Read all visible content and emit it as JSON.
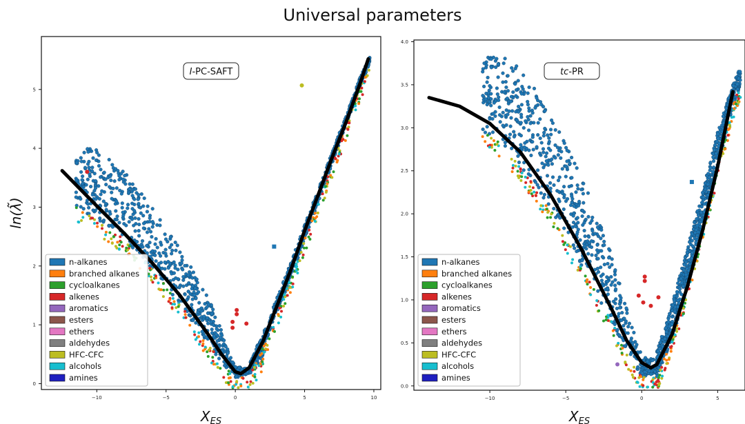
{
  "figure": {
    "title": "Universal parameters"
  },
  "colors": {
    "n-alkanes": "#1f77b4",
    "branched alkanes": "#ff7f0e",
    "cycloalkanes": "#2ca02c",
    "alkenes": "#d62728",
    "aromatics": "#9467bd",
    "esters": "#8c564b",
    "ethers": "#e377c2",
    "aldehydes": "#7f7f7f",
    "HFC-CFC": "#bcbd22",
    "alcohols": "#17becf",
    "amines": "#1f1fbf",
    "fit_curve": "#000000"
  },
  "chart_data": [
    {
      "type": "scatter",
      "annotation_prefix": "I",
      "annotation_suffix": "-PC-SAFT",
      "xlabel": "X_ES",
      "ylabel": "ln(λ̃)",
      "xlim": [
        -14,
        10.5
      ],
      "ylim": [
        -0.1,
        5.9
      ],
      "xticks": [
        -10,
        -5,
        0,
        5,
        10
      ],
      "yticks": [
        0,
        1,
        2,
        3,
        4,
        5
      ],
      "legend": [
        "n-alkanes",
        "branched alkanes",
        "cycloalkanes",
        "alkenes",
        "aromatics",
        "esters",
        "ethers",
        "aldehydes",
        "HFC-CFC",
        "alcohols",
        "amines"
      ],
      "legend_position": "lower-left",
      "fit_curve": {
        "x": [
          -12.5,
          -10,
          -8,
          -6,
          -4,
          -2,
          -1,
          0,
          0.4,
          1,
          2,
          3,
          4,
          5,
          6,
          7,
          8,
          9,
          9.6
        ],
        "y": [
          3.62,
          3.02,
          2.55,
          2.05,
          1.5,
          0.85,
          0.5,
          0.2,
          0.17,
          0.27,
          0.72,
          1.32,
          1.93,
          2.6,
          3.22,
          3.85,
          4.45,
          5.1,
          5.52
        ]
      },
      "series": [
        {
          "name": "n-alkanes",
          "band_upper": {
            "x": [
              -11.5,
              -10,
              -8,
              -6,
              -4,
              -2,
              -1,
              0,
              1,
              2
            ],
            "y": [
              4.02,
              3.98,
              3.6,
              3.0,
              2.3,
              1.5,
              0.9,
              0.3,
              0.25,
              0.6
            ]
          },
          "band_lower": {
            "x": [
              -11.5,
              -10,
              -8,
              -6,
              -4,
              -2,
              -1,
              0,
              1,
              2
            ],
            "y": [
              3.0,
              2.8,
              2.45,
              1.95,
              1.35,
              0.7,
              0.35,
              0.1,
              0.15,
              0.45
            ]
          }
        },
        {
          "name": "n-alkanes",
          "band_upper": {
            "x": [
              1,
              2,
              3,
              4,
              5,
              6,
              7,
              8,
              9,
              9.7
            ],
            "y": [
              0.35,
              0.85,
              1.45,
              2.05,
              2.7,
              3.3,
              3.95,
              4.55,
              5.2,
              5.55
            ]
          },
          "band_lower": {
            "x": [
              1,
              2,
              3,
              4,
              5,
              6,
              7,
              8,
              9,
              9.7
            ],
            "y": [
              0.12,
              0.6,
              1.2,
              1.8,
              2.45,
              3.1,
              3.75,
              4.4,
              5.05,
              5.45
            ]
          }
        }
      ],
      "outliers": [
        {
          "group": "HFC-CFC",
          "x": 4.8,
          "y": 5.07
        },
        {
          "group": "n-alkanes",
          "x": 2.8,
          "y": 2.33
        },
        {
          "group": "alkenes",
          "x": 0.1,
          "y": 1.25
        },
        {
          "group": "alkenes",
          "x": 0.1,
          "y": 1.18
        },
        {
          "group": "alkenes",
          "x": -0.2,
          "y": 1.05
        },
        {
          "group": "alkenes",
          "x": 0.8,
          "y": 1.02
        },
        {
          "group": "alkenes",
          "x": -0.2,
          "y": 0.95
        },
        {
          "group": "alkenes",
          "x": -10.7,
          "y": 3.6
        }
      ]
    },
    {
      "type": "scatter",
      "annotation_prefix": "tc",
      "annotation_suffix": "-PR",
      "xlabel": "X_ES",
      "ylabel": "",
      "xlim": [
        -15,
        6.8
      ],
      "ylim": [
        -0.05,
        4.02
      ],
      "xticks": [
        -10,
        -5,
        0,
        5
      ],
      "yticks": [
        0.0,
        0.5,
        1.0,
        1.5,
        2.0,
        2.5,
        3.0,
        3.5,
        4.0
      ],
      "legend": [
        "n-alkanes",
        "branched alkanes",
        "cycloalkanes",
        "alkenes",
        "aromatics",
        "esters",
        "ethers",
        "aldehydes",
        "HFC-CFC",
        "alcohols",
        "amines"
      ],
      "legend_position": "lower-left",
      "fit_curve": {
        "x": [
          -14,
          -12,
          -10,
          -8,
          -6,
          -4,
          -2,
          -1,
          0,
          0.6,
          1,
          2,
          3,
          4,
          5,
          6
        ],
        "y": [
          3.35,
          3.25,
          3.05,
          2.72,
          2.22,
          1.6,
          0.9,
          0.53,
          0.27,
          0.21,
          0.25,
          0.6,
          1.15,
          1.8,
          2.55,
          3.42
        ]
      },
      "series": [
        {
          "name": "n-alkanes",
          "band_upper": {
            "x": [
              -10.5,
              -9.5,
              -8,
              -6,
              -4,
              -2,
              -1,
              0,
              1
            ],
            "y": [
              3.8,
              3.85,
              3.72,
              3.15,
              2.45,
              1.55,
              0.9,
              0.35,
              0.3
            ]
          },
          "band_lower": {
            "x": [
              -10.5,
              -9.5,
              -8,
              -6,
              -4,
              -2,
              -1,
              0,
              1
            ],
            "y": [
              2.95,
              2.85,
              2.55,
              2.05,
              1.4,
              0.75,
              0.4,
              0.1,
              0.15
            ]
          }
        },
        {
          "name": "n-alkanes",
          "band_upper": {
            "x": [
              1,
              2,
              3,
              4,
              5,
              6,
              6.5
            ],
            "y": [
              0.4,
              0.95,
              1.6,
              2.25,
              2.95,
              3.5,
              3.7
            ]
          },
          "band_lower": {
            "x": [
              1,
              2,
              3,
              4,
              5,
              6,
              6.5
            ],
            "y": [
              0.1,
              0.55,
              1.15,
              1.85,
              2.55,
              3.25,
              3.5
            ]
          }
        }
      ],
      "outliers": [
        {
          "group": "n-alkanes",
          "x": 3.3,
          "y": 2.37
        },
        {
          "group": "alkenes",
          "x": 0.2,
          "y": 1.27
        },
        {
          "group": "alkenes",
          "x": 0.2,
          "y": 1.22
        },
        {
          "group": "alkenes",
          "x": -0.2,
          "y": 1.05
        },
        {
          "group": "alkenes",
          "x": 1.1,
          "y": 1.03
        },
        {
          "group": "alkenes",
          "x": 0.1,
          "y": 0.97
        },
        {
          "group": "alkenes",
          "x": 0.6,
          "y": 0.93
        },
        {
          "group": "aromatics",
          "x": -1.6,
          "y": 0.25
        }
      ]
    }
  ]
}
